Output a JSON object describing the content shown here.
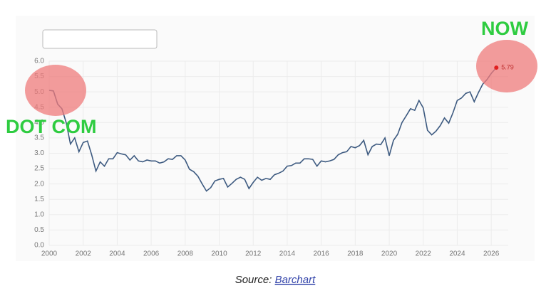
{
  "chart_data": {
    "type": "line",
    "annotations": [
      "DOT COM",
      "NOW"
    ],
    "source": {
      "prefix": "Source:",
      "link": "Barchart"
    },
    "color": "#3d5a80",
    "marker_color": "#e02020",
    "grid": true,
    "x": [
      2000,
      2000.25,
      2000.5,
      2000.75,
      2001,
      2001.25,
      2001.5,
      2001.75,
      2002,
      2002.25,
      2002.5,
      2002.75,
      2003,
      2003.25,
      2003.5,
      2003.75,
      2004,
      2004.25,
      2004.5,
      2004.75,
      2005,
      2005.25,
      2005.5,
      2005.75,
      2006,
      2006.25,
      2006.5,
      2006.75,
      2007,
      2007.25,
      2007.5,
      2007.75,
      2008,
      2008.25,
      2008.5,
      2008.75,
      2009,
      2009.25,
      2009.5,
      2009.75,
      2010,
      2010.25,
      2010.5,
      2010.75,
      2011,
      2011.25,
      2011.5,
      2011.75,
      2012,
      2012.25,
      2012.5,
      2012.75,
      2013,
      2013.25,
      2013.5,
      2013.75,
      2014,
      2014.25,
      2014.5,
      2014.75,
      2015,
      2015.25,
      2015.5,
      2015.75,
      2016,
      2016.25,
      2016.5,
      2016.75,
      2017,
      2017.25,
      2017.5,
      2017.75,
      2018,
      2018.25,
      2018.5,
      2018.75,
      2019,
      2019.25,
      2019.5,
      2019.75,
      2020,
      2020.25,
      2020.5,
      2020.75,
      2021,
      2021.25,
      2021.5,
      2021.75,
      2022,
      2022.25,
      2022.5,
      2022.75,
      2023,
      2023.25,
      2023.5,
      2023.75,
      2024,
      2024.25,
      2024.5,
      2024.75,
      2025,
      2025.25,
      2025.5,
      2025.75,
      2026,
      2026.3
    ],
    "values": [
      5.05,
      5.03,
      4.6,
      4.45,
      4.0,
      3.3,
      3.5,
      3.05,
      3.35,
      3.4,
      2.95,
      2.42,
      2.72,
      2.58,
      2.82,
      2.82,
      3.02,
      2.98,
      2.95,
      2.78,
      2.92,
      2.75,
      2.72,
      2.78,
      2.75,
      2.75,
      2.68,
      2.72,
      2.82,
      2.8,
      2.92,
      2.92,
      2.78,
      2.48,
      2.4,
      2.25,
      2.0,
      1.77,
      1.88,
      2.1,
      2.15,
      2.18,
      1.9,
      2.02,
      2.15,
      2.22,
      2.15,
      1.85,
      2.05,
      2.22,
      2.12,
      2.18,
      2.15,
      2.3,
      2.35,
      2.42,
      2.58,
      2.6,
      2.68,
      2.68,
      2.82,
      2.82,
      2.8,
      2.58,
      2.75,
      2.72,
      2.75,
      2.8,
      2.95,
      3.02,
      3.05,
      3.22,
      3.18,
      3.25,
      3.42,
      2.95,
      3.22,
      3.3,
      3.28,
      3.5,
      2.92,
      3.42,
      3.62,
      4.0,
      4.22,
      4.45,
      4.4,
      4.72,
      4.48,
      3.75,
      3.6,
      3.72,
      3.9,
      4.15,
      3.98,
      4.32,
      4.72,
      4.8,
      4.95,
      5.0,
      4.68,
      4.98,
      5.25,
      5.4,
      5.6,
      5.79
    ],
    "xlim": [
      2000,
      2027
    ],
    "xticks": [
      2000,
      2002,
      2004,
      2006,
      2008,
      2010,
      2012,
      2014,
      2016,
      2018,
      2020,
      2022,
      2024,
      2026
    ],
    "ylim": [
      0,
      6
    ],
    "yticks": [
      {
        "value": 0,
        "label": "0.0"
      },
      {
        "value": 0.5,
        "label": "0.5"
      },
      {
        "value": 1,
        "label": "1.0"
      },
      {
        "value": 1.5,
        "label": "1.5"
      },
      {
        "value": 2,
        "label": "2.0"
      },
      {
        "value": 2.5,
        "label": "2.5"
      },
      {
        "value": 3,
        "label": "3.0"
      },
      {
        "value": 3.5,
        "label": "3.5"
      },
      {
        "value": 4,
        "label": "4.0"
      },
      {
        "value": 4.5,
        "label": "4.5"
      },
      {
        "value": 5,
        "label": "5.0"
      },
      {
        "value": 5.5,
        "label": "5.5"
      },
      {
        "value": 6,
        "label": "6.0"
      }
    ]
  }
}
